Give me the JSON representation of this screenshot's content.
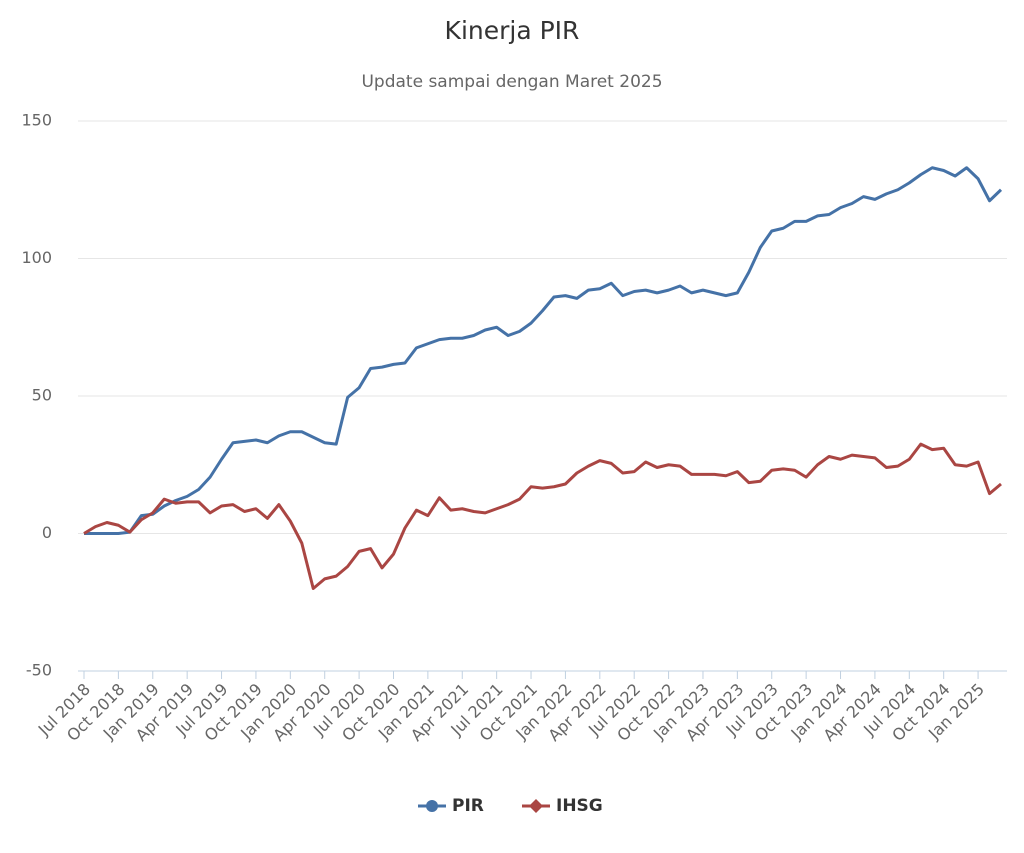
{
  "chart_data": {
    "type": "line",
    "title": "Kinerja PIR",
    "subtitle": "Update sampai dengan Maret 2025",
    "categories": [
      "Jul 2018",
      null,
      null,
      "Oct 2018",
      null,
      null,
      "Jan 2019",
      null,
      null,
      "Apr 2019",
      null,
      null,
      "Jul 2019",
      null,
      null,
      "Oct 2019",
      null,
      null,
      "Jan 2020",
      null,
      null,
      "Apr 2020",
      null,
      null,
      "Jul 2020",
      null,
      null,
      "Oct 2020",
      null,
      null,
      "Jan 2021",
      null,
      null,
      "Apr 2021",
      null,
      null,
      "Jul 2021",
      null,
      null,
      "Oct 2021",
      null,
      null,
      "Jan 2022",
      null,
      null,
      "Apr 2022",
      null,
      null,
      "Jul 2022",
      null,
      null,
      "Oct 2022",
      null,
      null,
      "Jan 2023",
      null,
      null,
      "Apr 2023",
      null,
      null,
      "Jul 2023",
      null,
      null,
      "Oct 2023",
      null,
      null,
      "Jan 2024",
      null,
      null,
      "Apr 2024",
      null,
      null,
      "Jul 2024",
      null,
      null,
      "Oct 2024",
      null,
      null,
      "Jan 2025",
      null,
      null
    ],
    "series": [
      {
        "name": "PIR",
        "color": "#4572a7",
        "values": [
          0,
          0,
          0,
          0,
          0.5,
          6.5,
          7,
          10,
          12,
          13.5,
          16,
          20.5,
          27,
          33,
          33.5,
          34,
          33,
          35.5,
          37,
          37,
          35,
          33,
          32.5,
          49.5,
          53,
          60,
          60.5,
          61.5,
          62,
          67.5,
          69,
          70.5,
          71,
          71,
          72,
          74,
          75,
          72,
          73.5,
          76.5,
          81,
          86,
          86.5,
          85.5,
          88.5,
          89,
          91,
          86.5,
          88,
          88.5,
          87.5,
          88.5,
          90,
          87.5,
          88.5,
          87.5,
          86.5,
          87.5,
          95,
          104,
          110,
          111,
          113.5,
          113.5,
          115.5,
          116,
          118.5,
          120,
          122.5,
          121.5,
          123.5,
          125,
          127.5,
          130.5,
          133,
          132,
          130,
          133,
          129,
          121,
          125
        ]
      },
      {
        "name": "IHSG",
        "color": "#aa4643",
        "values": [
          0,
          2.5,
          4,
          3,
          0.5,
          5,
          7.5,
          12.5,
          11,
          11.5,
          11.5,
          7.5,
          10,
          10.5,
          8,
          9,
          5.5,
          10.5,
          4.5,
          -3.5,
          -20,
          -16.5,
          -15.5,
          -12,
          -6.5,
          -5.5,
          -12.5,
          -7.5,
          2,
          8.5,
          6.5,
          13,
          8.5,
          9,
          8,
          7.5,
          9,
          10.5,
          12.5,
          17,
          16.5,
          17,
          18,
          22,
          24.5,
          26.5,
          25.5,
          22,
          22.5,
          26,
          24,
          25,
          24.5,
          21.5,
          21.5,
          21.5,
          21,
          22.5,
          18.5,
          19,
          23,
          23.5,
          23,
          20.5,
          25,
          28,
          27,
          28.5,
          28,
          27.5,
          24,
          24.5,
          27,
          32.5,
          30.5,
          31,
          25,
          24.5,
          26,
          14.5,
          18
        ]
      }
    ],
    "ylim": [
      -50,
      150
    ],
    "yticks": [
      -50,
      0,
      50,
      100,
      150
    ],
    "grid": true,
    "legend": "bottom"
  }
}
